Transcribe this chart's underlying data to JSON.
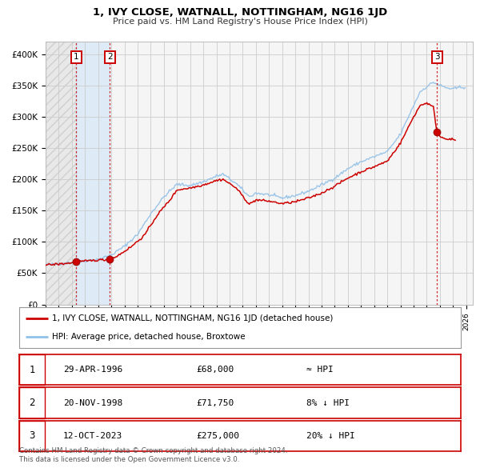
{
  "title": "1, IVY CLOSE, WATNALL, NOTTINGHAM, NG16 1JD",
  "subtitle": "Price paid vs. HM Land Registry's House Price Index (HPI)",
  "ylim": [
    0,
    420000
  ],
  "xlim_start": 1994.0,
  "xlim_end": 2026.5,
  "yticks": [
    0,
    50000,
    100000,
    150000,
    200000,
    250000,
    300000,
    350000,
    400000
  ],
  "ytick_labels": [
    "£0",
    "£50K",
    "£100K",
    "£150K",
    "£200K",
    "£250K",
    "£300K",
    "£350K",
    "£400K"
  ],
  "grid_color": "#cccccc",
  "background_color": "#ffffff",
  "plot_bg_color": "#f5f5f5",
  "hpi_line_color": "#90c0e8",
  "price_line_color": "#cc0000",
  "sale_marker_color": "#cc0000",
  "sale1_x": 1996.33,
  "sale1_y": 68000,
  "sale2_x": 1998.89,
  "sale2_y": 71750,
  "sale3_x": 2023.78,
  "sale3_y": 275000,
  "legend_red_label": "1, IVY CLOSE, WATNALL, NOTTINGHAM, NG16 1JD (detached house)",
  "legend_blue_label": "HPI: Average price, detached house, Broxtowe",
  "table_rows": [
    {
      "num": "1",
      "date": "29-APR-1996",
      "price": "£68,000",
      "rel": "≈ HPI"
    },
    {
      "num": "2",
      "date": "20-NOV-1998",
      "price": "£71,750",
      "rel": "8% ↓ HPI"
    },
    {
      "num": "3",
      "date": "12-OCT-2023",
      "price": "£275,000",
      "rel": "20% ↓ HPI"
    }
  ],
  "footer1": "Contains HM Land Registry data © Crown copyright and database right 2024.",
  "footer2": "This data is licensed under the Open Government Licence v3.0.",
  "hpi_anchors": [
    [
      1994.0,
      63000
    ],
    [
      1995.0,
      65000
    ],
    [
      1996.0,
      67000
    ],
    [
      1997.0,
      70000
    ],
    [
      1998.0,
      72000
    ],
    [
      1999.0,
      79000
    ],
    [
      2000.0,
      93000
    ],
    [
      2001.0,
      112000
    ],
    [
      2002.0,
      145000
    ],
    [
      2003.0,
      172000
    ],
    [
      2004.0,
      192000
    ],
    [
      2005.0,
      190000
    ],
    [
      2006.0,
      196000
    ],
    [
      2007.0,
      205000
    ],
    [
      2007.5,
      208000
    ],
    [
      2008.5,
      193000
    ],
    [
      2009.5,
      172000
    ],
    [
      2010.0,
      178000
    ],
    [
      2011.0,
      175000
    ],
    [
      2012.0,
      170000
    ],
    [
      2013.0,
      174000
    ],
    [
      2014.0,
      181000
    ],
    [
      2015.0,
      191000
    ],
    [
      2016.0,
      202000
    ],
    [
      2017.0,
      217000
    ],
    [
      2018.0,
      228000
    ],
    [
      2019.0,
      236000
    ],
    [
      2020.0,
      244000
    ],
    [
      2021.0,
      272000
    ],
    [
      2022.0,
      318000
    ],
    [
      2022.5,
      340000
    ],
    [
      2023.0,
      348000
    ],
    [
      2023.5,
      355000
    ],
    [
      2024.0,
      350000
    ],
    [
      2024.5,
      346000
    ],
    [
      2025.0,
      344000
    ],
    [
      2025.5,
      347000
    ]
  ],
  "price_anchors": [
    [
      1994.0,
      63000
    ],
    [
      1995.0,
      64500
    ],
    [
      1996.0,
      66500
    ],
    [
      1996.33,
      68000
    ],
    [
      1997.0,
      69000
    ],
    [
      1998.0,
      71000
    ],
    [
      1998.89,
      71750
    ],
    [
      1999.5,
      78000
    ],
    [
      2000.5,
      92000
    ],
    [
      2001.5,
      110000
    ],
    [
      2002.5,
      143000
    ],
    [
      2003.5,
      168000
    ],
    [
      2004.0,
      183000
    ],
    [
      2005.0,
      186000
    ],
    [
      2006.0,
      191000
    ],
    [
      2007.0,
      198000
    ],
    [
      2007.5,
      200000
    ],
    [
      2008.5,
      186000
    ],
    [
      2009.5,
      160000
    ],
    [
      2010.0,
      167000
    ],
    [
      2011.0,
      165000
    ],
    [
      2012.0,
      161000
    ],
    [
      2013.0,
      164000
    ],
    [
      2014.0,
      170000
    ],
    [
      2015.0,
      178000
    ],
    [
      2016.0,
      189000
    ],
    [
      2017.0,
      202000
    ],
    [
      2018.0,
      212000
    ],
    [
      2019.0,
      220000
    ],
    [
      2020.0,
      229000
    ],
    [
      2021.0,
      258000
    ],
    [
      2022.0,
      300000
    ],
    [
      2022.5,
      318000
    ],
    [
      2023.0,
      322000
    ],
    [
      2023.5,
      315000
    ],
    [
      2023.78,
      275000
    ],
    [
      2024.0,
      268000
    ],
    [
      2024.5,
      265000
    ],
    [
      2025.0,
      263000
    ]
  ]
}
